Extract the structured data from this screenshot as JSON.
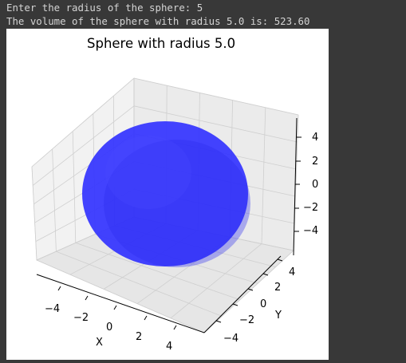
{
  "console": {
    "lines": [
      "Enter the radius of the sphere: 5",
      "The volume of the sphere with radius 5.0 is: 523.60"
    ]
  },
  "chart_data": {
    "type": "scatter",
    "title": "Sphere with radius 5.0",
    "xlabel": "X",
    "ylabel": "Y",
    "zlabel": "",
    "xlim": [
      -5,
      5
    ],
    "ylim": [
      -5,
      5
    ],
    "zlim": [
      -5,
      5
    ],
    "x_ticks": [
      "−4",
      "−2",
      "0",
      "2",
      "4"
    ],
    "y_ticks": [
      "−4",
      "−2",
      "0",
      "2",
      "4"
    ],
    "z_ticks": [
      "4",
      "2",
      "0",
      "−2",
      "−4"
    ],
    "surface": {
      "shape": "sphere",
      "radius": 5.0,
      "center": [
        0,
        0,
        0
      ],
      "color": "#1a1aff",
      "alpha": 0.8
    },
    "grid": true
  }
}
